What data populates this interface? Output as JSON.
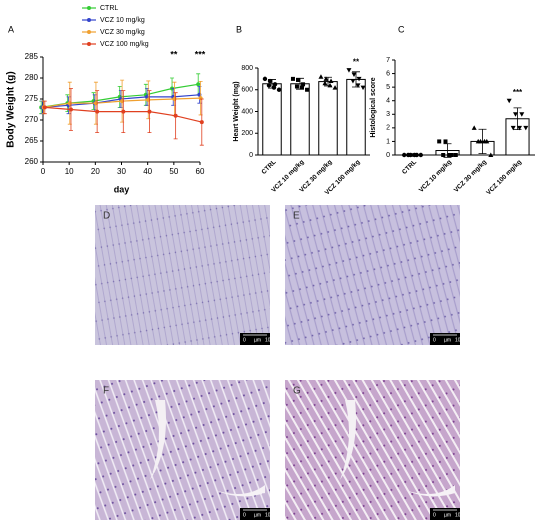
{
  "chart_data": [
    {
      "type": "line",
      "panel": "A",
      "x_label": "day",
      "y_label": "Body Weight (g)",
      "x": [
        0,
        10,
        20,
        30,
        40,
        50,
        60
      ],
      "xlim": [
        0,
        60
      ],
      "xticks": [
        0,
        10,
        20,
        30,
        40,
        50,
        60
      ],
      "ylim": [
        260,
        285
      ],
      "yticks": [
        260,
        265,
        270,
        275,
        280,
        285
      ],
      "series": [
        {
          "name": "CTRL",
          "color": "#33cc33",
          "values": [
            273,
            274,
            274.5,
            275.5,
            276,
            277.5,
            278.5
          ],
          "errors": [
            1.5,
            2,
            2,
            2.5,
            2.5,
            2.5,
            2.5
          ]
        },
        {
          "name": "VCZ 10 mg/kg",
          "color": "#3344cc",
          "values": [
            273,
            273.5,
            274,
            275,
            275.5,
            275.5,
            276
          ],
          "errors": [
            1.5,
            2,
            2,
            2,
            2,
            2,
            2
          ]
        },
        {
          "name": "VCZ 30 mg/kg",
          "color": "#f0a030",
          "values": [
            273,
            274,
            274,
            274.5,
            274.8,
            275,
            275.2
          ],
          "errors": [
            1.5,
            5,
            5,
            5,
            4.5,
            4,
            4
          ]
        },
        {
          "name": "VCZ 100 mg/kg",
          "color": "#e04020",
          "values": [
            273,
            272.5,
            272,
            272,
            272,
            271,
            269.5
          ],
          "errors": [
            1.5,
            5,
            5,
            5,
            5,
            5.5,
            5.5
          ]
        }
      ],
      "annotations": [
        {
          "text": "**",
          "x": 50
        },
        {
          "text": "***",
          "x": 60
        }
      ]
    },
    {
      "type": "bar",
      "panel": "B",
      "y_label": "Heart Weight (mg)",
      "categories": [
        "CTRL",
        "VCZ 10 mg/kg",
        "VCZ 30 mg/kg",
        "VCZ 100 mg/kg"
      ],
      "values": [
        655,
        655,
        675,
        695
      ],
      "errors": [
        40,
        50,
        40,
        70
      ],
      "points": [
        [
          700,
          680,
          650,
          640,
          620,
          600
        ],
        [
          700,
          690,
          650,
          630,
          620,
          600
        ],
        [
          720,
          700,
          680,
          660,
          640,
          620
        ],
        [
          780,
          740,
          700,
          680,
          640,
          620
        ]
      ],
      "ylim": [
        0,
        800
      ],
      "yticks": [
        0,
        200,
        400,
        600,
        800
      ],
      "annotations": [
        {
          "text": "**",
          "x": "VCZ 100 mg/kg"
        }
      ]
    },
    {
      "type": "bar",
      "panel": "C",
      "y_label": "Histological score",
      "categories": [
        "CTRL",
        "VCZ 10 mg/kg",
        "VCZ 30 mg/kg",
        "VCZ 100 mg/kg"
      ],
      "values": [
        0,
        0.33,
        1,
        2.67
      ],
      "errors": [
        0.1,
        0.5,
        0.9,
        0.8
      ],
      "points": [
        [
          0,
          0,
          0,
          0,
          0,
          0
        ],
        [
          1,
          1,
          0,
          0,
          0,
          0
        ],
        [
          2,
          1,
          1,
          1,
          1,
          0
        ],
        [
          4,
          3,
          3,
          2,
          2,
          2
        ]
      ],
      "ylim": [
        0,
        7
      ],
      "yticks": [
        0,
        1,
        2,
        3,
        4,
        5,
        6,
        7
      ],
      "annotations": [
        {
          "text": "***",
          "x": "VCZ 100 mg/kg"
        }
      ]
    }
  ],
  "images": [
    {
      "label": "D",
      "scale": [
        "0",
        "µm",
        "100"
      ]
    },
    {
      "label": "E",
      "scale": [
        "0",
        "µm",
        "100"
      ]
    },
    {
      "label": "F",
      "scale": [
        "0",
        "µm",
        "100"
      ]
    },
    {
      "label": "G",
      "scale": [
        "0",
        "µm",
        "100"
      ]
    }
  ]
}
